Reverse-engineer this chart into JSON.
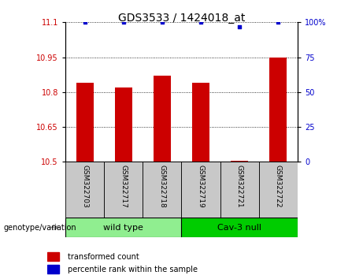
{
  "title": "GDS3533 / 1424018_at",
  "samples": [
    "GSM322703",
    "GSM322717",
    "GSM322718",
    "GSM322719",
    "GSM322721",
    "GSM322722"
  ],
  "red_values": [
    10.84,
    10.82,
    10.87,
    10.84,
    10.505,
    10.95
  ],
  "blue_values": [
    100,
    100,
    100,
    100,
    97,
    100
  ],
  "ylim_left": [
    10.5,
    11.1
  ],
  "ylim_right": [
    0,
    100
  ],
  "yticks_left": [
    10.5,
    10.65,
    10.8,
    10.95,
    11.1
  ],
  "yticks_right": [
    0,
    25,
    50,
    75,
    100
  ],
  "ytick_labels_right": [
    "0",
    "25",
    "50",
    "75",
    "100%"
  ],
  "groups": [
    {
      "label": "wild type",
      "indices": [
        0,
        1,
        2
      ],
      "color": "#90EE90"
    },
    {
      "label": "Cav-3 null",
      "indices": [
        3,
        4,
        5
      ],
      "color": "#00CC00"
    }
  ],
  "group_label": "genotype/variation",
  "bar_color": "#CC0000",
  "dot_color": "#0000CC",
  "legend_items": [
    {
      "color": "#CC0000",
      "label": "transformed count"
    },
    {
      "color": "#0000CC",
      "label": "percentile rank within the sample"
    }
  ],
  "tick_label_color_left": "#CC0000",
  "tick_label_color_right": "#0000CC",
  "grid_color": "#000000",
  "background_xtick": "#C8C8C8",
  "fig_width": 4.61,
  "fig_height": 3.54,
  "dpi": 100
}
